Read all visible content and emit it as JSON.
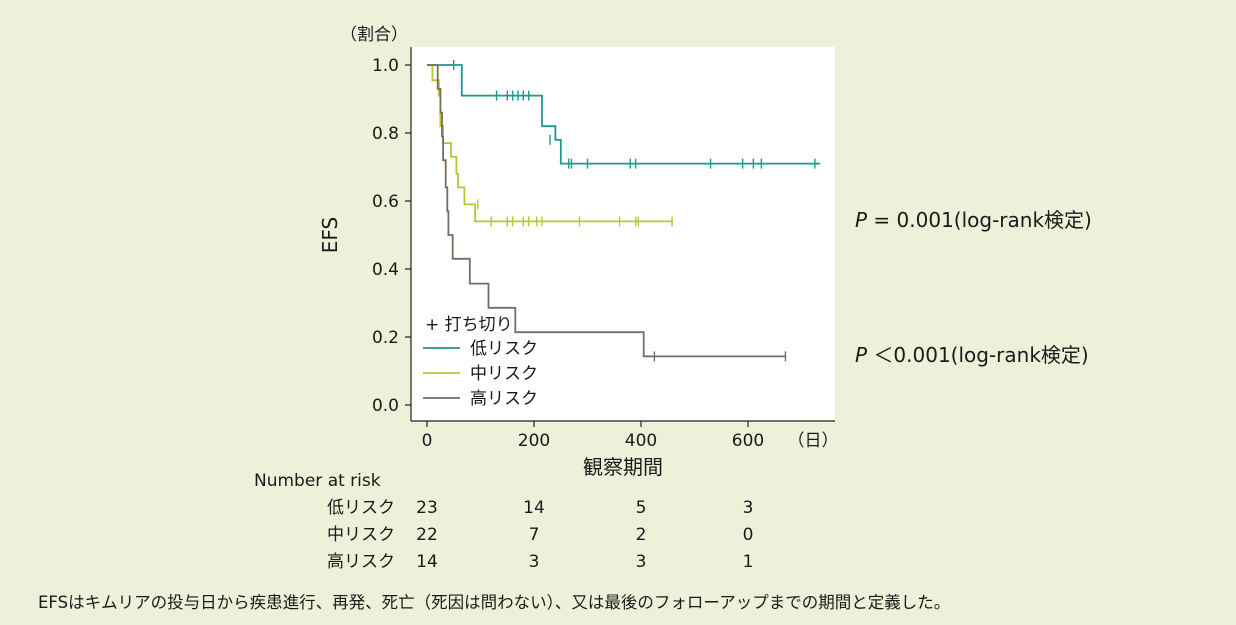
{
  "chart_data": {
    "type": "line",
    "subtype": "kaplan-meier",
    "xlabel": "観察期間",
    "x_unit": "（日）",
    "ylabel": "EFS",
    "y_unit": "（割合）",
    "xlim": [
      -20,
      750
    ],
    "ylim": [
      -0.03,
      1.05
    ],
    "x_ticks": [
      0,
      200,
      400,
      600
    ],
    "y_ticks": [
      0.0,
      0.2,
      0.4,
      0.6,
      0.8,
      1.0
    ],
    "y_tick_labels": [
      "0.0",
      "0.2",
      "0.4",
      "0.6",
      "0.8",
      "1.0"
    ],
    "grid": false,
    "legend_position": "bottom-left",
    "censor_label": "打ち切り",
    "series": [
      {
        "name": "低リスク",
        "color": "#1a9a8a",
        "steps": [
          [
            0,
            1.0
          ],
          [
            65,
            1.0
          ],
          [
            65,
            0.91
          ],
          [
            215,
            0.91
          ],
          [
            215,
            0.82
          ],
          [
            240,
            0.82
          ],
          [
            240,
            0.78
          ],
          [
            250,
            0.78
          ],
          [
            250,
            0.71
          ],
          [
            735,
            0.71
          ]
        ],
        "censors": [
          [
            50,
            1.0
          ],
          [
            130,
            0.91
          ],
          [
            150,
            0.91
          ],
          [
            160,
            0.91
          ],
          [
            170,
            0.91
          ],
          [
            180,
            0.91
          ],
          [
            190,
            0.91
          ],
          [
            230,
            0.78
          ],
          [
            265,
            0.71
          ],
          [
            270,
            0.71
          ],
          [
            300,
            0.71
          ],
          [
            380,
            0.71
          ],
          [
            390,
            0.71
          ],
          [
            530,
            0.71
          ],
          [
            590,
            0.71
          ],
          [
            610,
            0.71
          ],
          [
            625,
            0.71
          ],
          [
            725,
            0.71
          ]
        ]
      },
      {
        "name": "中リスク",
        "color": "#b4c832",
        "steps": [
          [
            0,
            1.0
          ],
          [
            10,
            1.0
          ],
          [
            10,
            0.955
          ],
          [
            22,
            0.955
          ],
          [
            22,
            0.91
          ],
          [
            25,
            0.91
          ],
          [
            25,
            0.82
          ],
          [
            30,
            0.82
          ],
          [
            30,
            0.77
          ],
          [
            45,
            0.77
          ],
          [
            45,
            0.73
          ],
          [
            55,
            0.73
          ],
          [
            55,
            0.68
          ],
          [
            58,
            0.68
          ],
          [
            58,
            0.64
          ],
          [
            70,
            0.64
          ],
          [
            70,
            0.59
          ],
          [
            90,
            0.59
          ],
          [
            90,
            0.54
          ],
          [
            460,
            0.54
          ]
        ],
        "censors": [
          [
            95,
            0.59
          ],
          [
            120,
            0.54
          ],
          [
            150,
            0.54
          ],
          [
            160,
            0.54
          ],
          [
            180,
            0.54
          ],
          [
            190,
            0.54
          ],
          [
            205,
            0.54
          ],
          [
            215,
            0.54
          ],
          [
            285,
            0.54
          ],
          [
            360,
            0.54
          ],
          [
            390,
            0.54
          ],
          [
            395,
            0.54
          ],
          [
            458,
            0.54
          ]
        ]
      },
      {
        "name": "高リスク",
        "color": "#7b6a60",
        "steps": [
          [
            0,
            1.0
          ],
          [
            20,
            1.0
          ],
          [
            20,
            0.93
          ],
          [
            25,
            0.93
          ],
          [
            25,
            0.86
          ],
          [
            28,
            0.86
          ],
          [
            28,
            0.79
          ],
          [
            30,
            0.79
          ],
          [
            30,
            0.72
          ],
          [
            35,
            0.72
          ],
          [
            35,
            0.64
          ],
          [
            38,
            0.64
          ],
          [
            38,
            0.57
          ],
          [
            40,
            0.57
          ],
          [
            40,
            0.5
          ],
          [
            48,
            0.5
          ],
          [
            48,
            0.43
          ],
          [
            80,
            0.43
          ],
          [
            80,
            0.357
          ],
          [
            115,
            0.357
          ],
          [
            115,
            0.286
          ],
          [
            165,
            0.286
          ],
          [
            165,
            0.214
          ],
          [
            405,
            0.214
          ],
          [
            405,
            0.143
          ],
          [
            670,
            0.143
          ]
        ],
        "censors": [
          [
            425,
            0.143
          ],
          [
            670,
            0.143
          ]
        ]
      }
    ],
    "annotations": [
      {
        "p_symbol": "P",
        "text": " = 0.001(log-rank検定)",
        "y": 0.54
      },
      {
        "p_symbol": "P",
        "text": " ＜0.001(log-rank検定)",
        "y": 0.15
      }
    ],
    "risk_table": {
      "title": "Number at risk",
      "times": [
        0,
        200,
        400,
        600
      ],
      "rows": [
        {
          "name": "低リスク",
          "counts": [
            "23",
            "14",
            "5",
            "3"
          ]
        },
        {
          "name": "中リスク",
          "counts": [
            "22",
            "7",
            "2",
            "0"
          ]
        },
        {
          "name": "高リスク",
          "counts": [
            "14",
            "3",
            "3",
            "1"
          ]
        }
      ]
    }
  },
  "footnote": "EFSはキムリアの投与日から疾患進行、再発、死亡（死因は問わない）、又は最後のフォローアップまでの期間と定義した。"
}
